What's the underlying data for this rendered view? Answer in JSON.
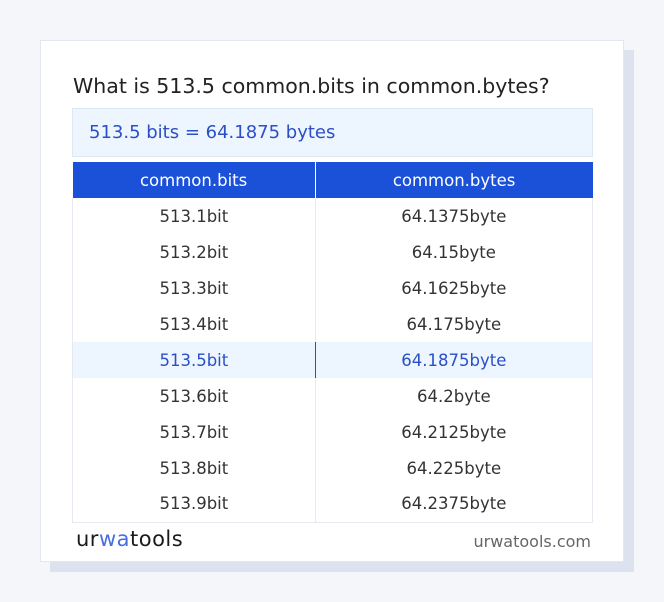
{
  "title": "What is 513.5 common.bits in common.bytes?",
  "result": "513.5 bits = 64.1875 bytes",
  "table": {
    "headers": [
      "common.bits",
      "common.bytes"
    ],
    "rows": [
      [
        "513.1bit",
        "64.1375byte"
      ],
      [
        "513.2bit",
        "64.15byte"
      ],
      [
        "513.3bit",
        "64.1625byte"
      ],
      [
        "513.4bit",
        "64.175byte"
      ],
      [
        "513.5bit",
        "64.1875byte"
      ],
      [
        "513.6bit",
        "64.2byte"
      ],
      [
        "513.7bit",
        "64.2125byte"
      ],
      [
        "513.8bit",
        "64.225byte"
      ],
      [
        "513.9bit",
        "64.2375byte"
      ]
    ],
    "highlighted_row": 4
  },
  "footer": {
    "logo": {
      "a": "ur",
      "b": "wa",
      "c": "tools"
    },
    "site": "urwatools.com"
  },
  "colors": {
    "accent": "#1b50d9",
    "highlight_text": "#2a4fc6",
    "highlight_bg": "#edf5fe"
  }
}
